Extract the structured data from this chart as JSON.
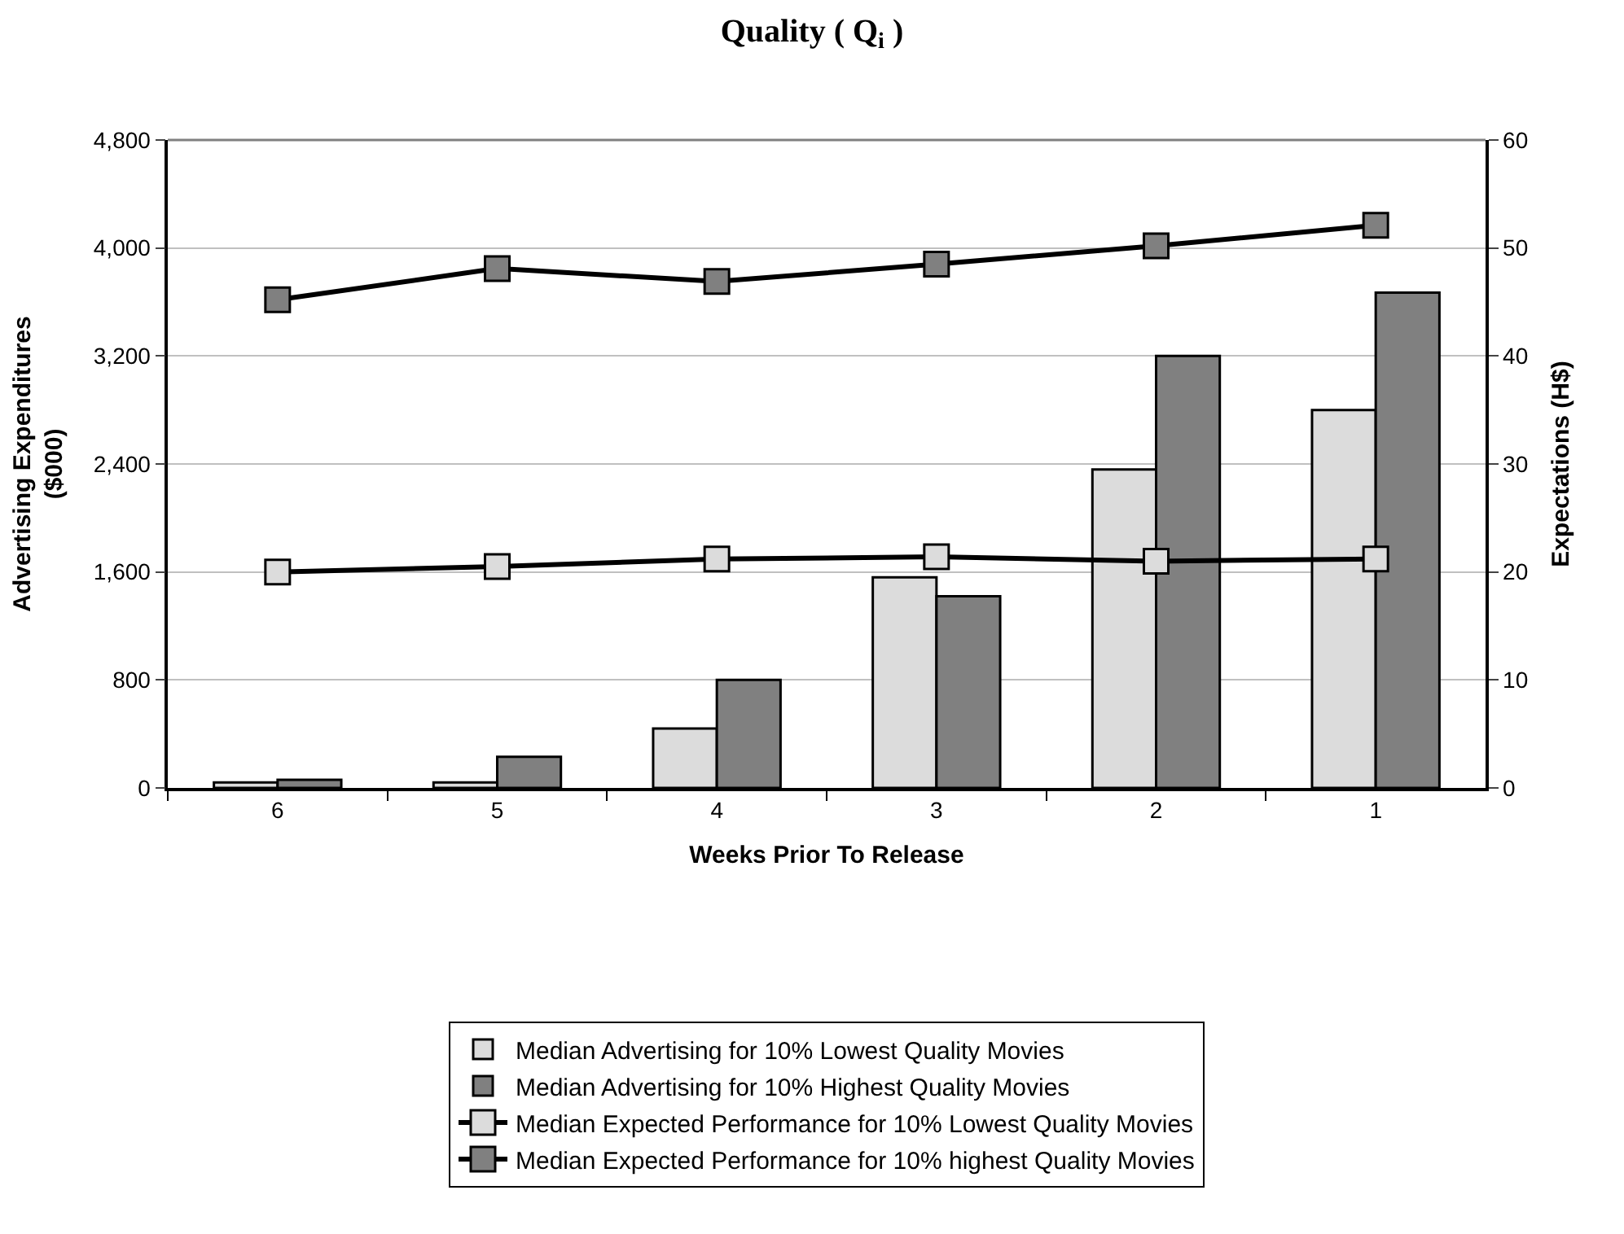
{
  "chart_data": {
    "type": "bar",
    "title": "Quality ( Q$_{i}$ )",
    "xlabel": "Weeks Prior To Release",
    "ylabel": "Advertising Expenditures\n($000)",
    "y2label": "Expectations (H$)",
    "categories": [
      "6",
      "5",
      "4",
      "3",
      "2",
      "1"
    ],
    "series": [
      {
        "name": "Median Advertising for 10% Lowest Quality Movies",
        "color": "#dcdcdc",
        "values": [
          40,
          40,
          440,
          1560,
          2360,
          2800
        ]
      },
      {
        "name": "Median Advertising for 10% Highest Quality Movies",
        "color": "#808080",
        "values": [
          60,
          230,
          800,
          1420,
          3200,
          3670
        ]
      },
      {
        "name": "Median Expected Performance for 10% Lowest Quality Movies",
        "type": "line",
        "axis": "y2",
        "color": "#dcdcdc",
        "values": [
          20.0,
          20.5,
          21.2,
          21.4,
          21.0,
          21.2
        ]
      },
      {
        "name": "Median Expected Performance for 10% highest Quality Movies",
        "type": "line",
        "axis": "y2",
        "color": "#808080",
        "values": [
          45.2,
          48.1,
          46.9,
          48.5,
          50.2,
          52.1
        ]
      }
    ],
    "ylim": [
      0,
      4800
    ],
    "yticks": [
      0,
      {
        "value": 800,
        "label": "800"
      },
      {
        "value": 1600,
        "label": "1,600"
      },
      {
        "value": 2400,
        "label": "2,400"
      },
      {
        "value": 3200,
        "label": "3,200"
      },
      {
        "value": 4000,
        "label": "4,000"
      },
      {
        "value": 4800,
        "label": "4,800"
      }
    ],
    "y2lim": [
      0,
      60
    ],
    "y2ticks": [
      0,
      10,
      20,
      30,
      40,
      50,
      60
    ],
    "grid": "y",
    "legend": "bottom",
    "marker": "square",
    "line_style": "solid"
  }
}
